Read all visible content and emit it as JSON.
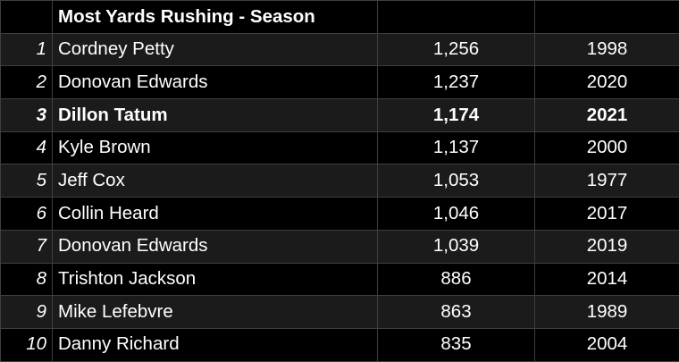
{
  "table": {
    "title": "Most Yards Rushing - Season",
    "rows": [
      {
        "rank": "1",
        "name": "Cordney Petty",
        "yards": "1,256",
        "year": "1998"
      },
      {
        "rank": "2",
        "name": "Donovan Edwards",
        "yards": "1,237",
        "year": "2020"
      },
      {
        "rank": "3",
        "name": "Dillon Tatum",
        "yards": "1,174",
        "year": "2021"
      },
      {
        "rank": "4",
        "name": "Kyle Brown",
        "yards": "1,137",
        "year": "2000"
      },
      {
        "rank": "5",
        "name": "Jeff Cox",
        "yards": "1,053",
        "year": "1977"
      },
      {
        "rank": "6",
        "name": "Collin Heard",
        "yards": "1,046",
        "year": "2017"
      },
      {
        "rank": "7",
        "name": "Donovan Edwards",
        "yards": "1,039",
        "year": "2019"
      },
      {
        "rank": "8",
        "name": "Trishton Jackson",
        "yards": "886",
        "year": "2014"
      },
      {
        "rank": "9",
        "name": "Mike Lefebvre",
        "yards": "863",
        "year": "1989"
      },
      {
        "rank": "10",
        "name": "Danny Richard",
        "yards": "835",
        "year": "2004"
      }
    ]
  }
}
